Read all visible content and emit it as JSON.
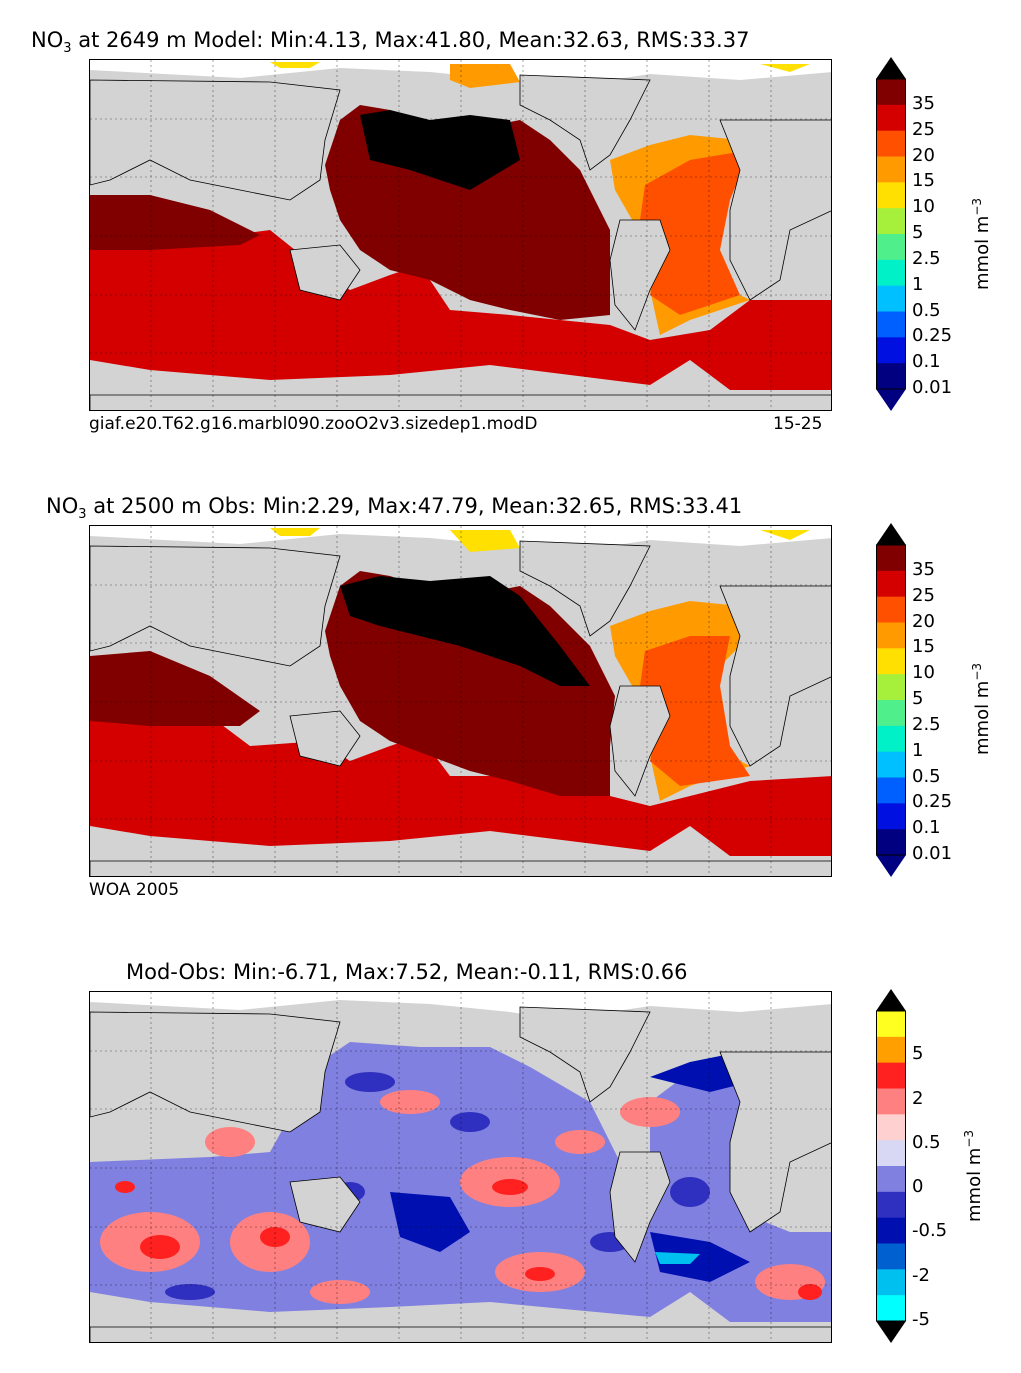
{
  "panels": [
    {
      "id": "model",
      "title_prefix": "NO",
      "title_sub": "3",
      "title_suffix": " at 2649 m Model: Min:4.13, Max:41.80, Mean:32.63, RMS:33.37",
      "caption_left": "giaf.e20.T62.g16.marbl090.zooO2v3.sizedep1.modD",
      "caption_right": "15-25",
      "colorbar": {
        "unit_label": "mmol m",
        "unit_exponent": "−3",
        "ticks": [
          "35",
          "25",
          "20",
          "15",
          "10",
          "5",
          "2.5",
          "1",
          "0.5",
          "0.25",
          "0.1",
          "0.01"
        ],
        "colors": [
          "#800000",
          "#d40000",
          "#ff5000",
          "#ff9a00",
          "#ffe000",
          "#a6f03c",
          "#4ff08c",
          "#00f0c8",
          "#00c0ff",
          "#0060ff",
          "#0010e0",
          "#000080"
        ],
        "over_color": "#000000",
        "under_color": "#000080"
      }
    },
    {
      "id": "obs",
      "title_prefix": "NO",
      "title_sub": "3",
      "title_suffix": " at 2500 m Obs: Min:2.29, Max:47.79, Mean:32.65, RMS:33.41",
      "caption_left": "WOA 2005",
      "caption_right": "",
      "colorbar": {
        "unit_label": "mmol m",
        "unit_exponent": "−3",
        "ticks": [
          "35",
          "25",
          "20",
          "15",
          "10",
          "5",
          "2.5",
          "1",
          "0.5",
          "0.25",
          "0.1",
          "0.01"
        ],
        "colors": [
          "#800000",
          "#d40000",
          "#ff5000",
          "#ff9a00",
          "#ffe000",
          "#a6f03c",
          "#4ff08c",
          "#00f0c8",
          "#00c0ff",
          "#0060ff",
          "#0010e0",
          "#000080"
        ],
        "over_color": "#000000",
        "under_color": "#000080"
      }
    },
    {
      "id": "diff",
      "title_prefix": "",
      "title_sub": "",
      "title_suffix": "Mod-Obs: Min:-6.71, Max:7.52, Mean:-0.11, RMS:0.66",
      "caption_left": "",
      "caption_right": "",
      "colorbar": {
        "unit_label": "mmol m",
        "unit_exponent": "−3",
        "ticks": [
          "5",
          "2",
          "0.5",
          "0",
          "-0.5",
          "-2",
          "-5"
        ],
        "colors": [
          "#ffff20",
          "#ffa000",
          "#ff2020",
          "#ff8080",
          "#ffd0d0",
          "#d8d8f4",
          "#8080e0",
          "#3030c0",
          "#0010b0",
          "#0060d0",
          "#00c0f0",
          "#00ffff"
        ],
        "over_color": "#000000",
        "under_color": "#000000"
      }
    }
  ],
  "map_colors": {
    "land": "#d3d3d3",
    "no_data": "#ffffff",
    "coast": "#000000"
  }
}
